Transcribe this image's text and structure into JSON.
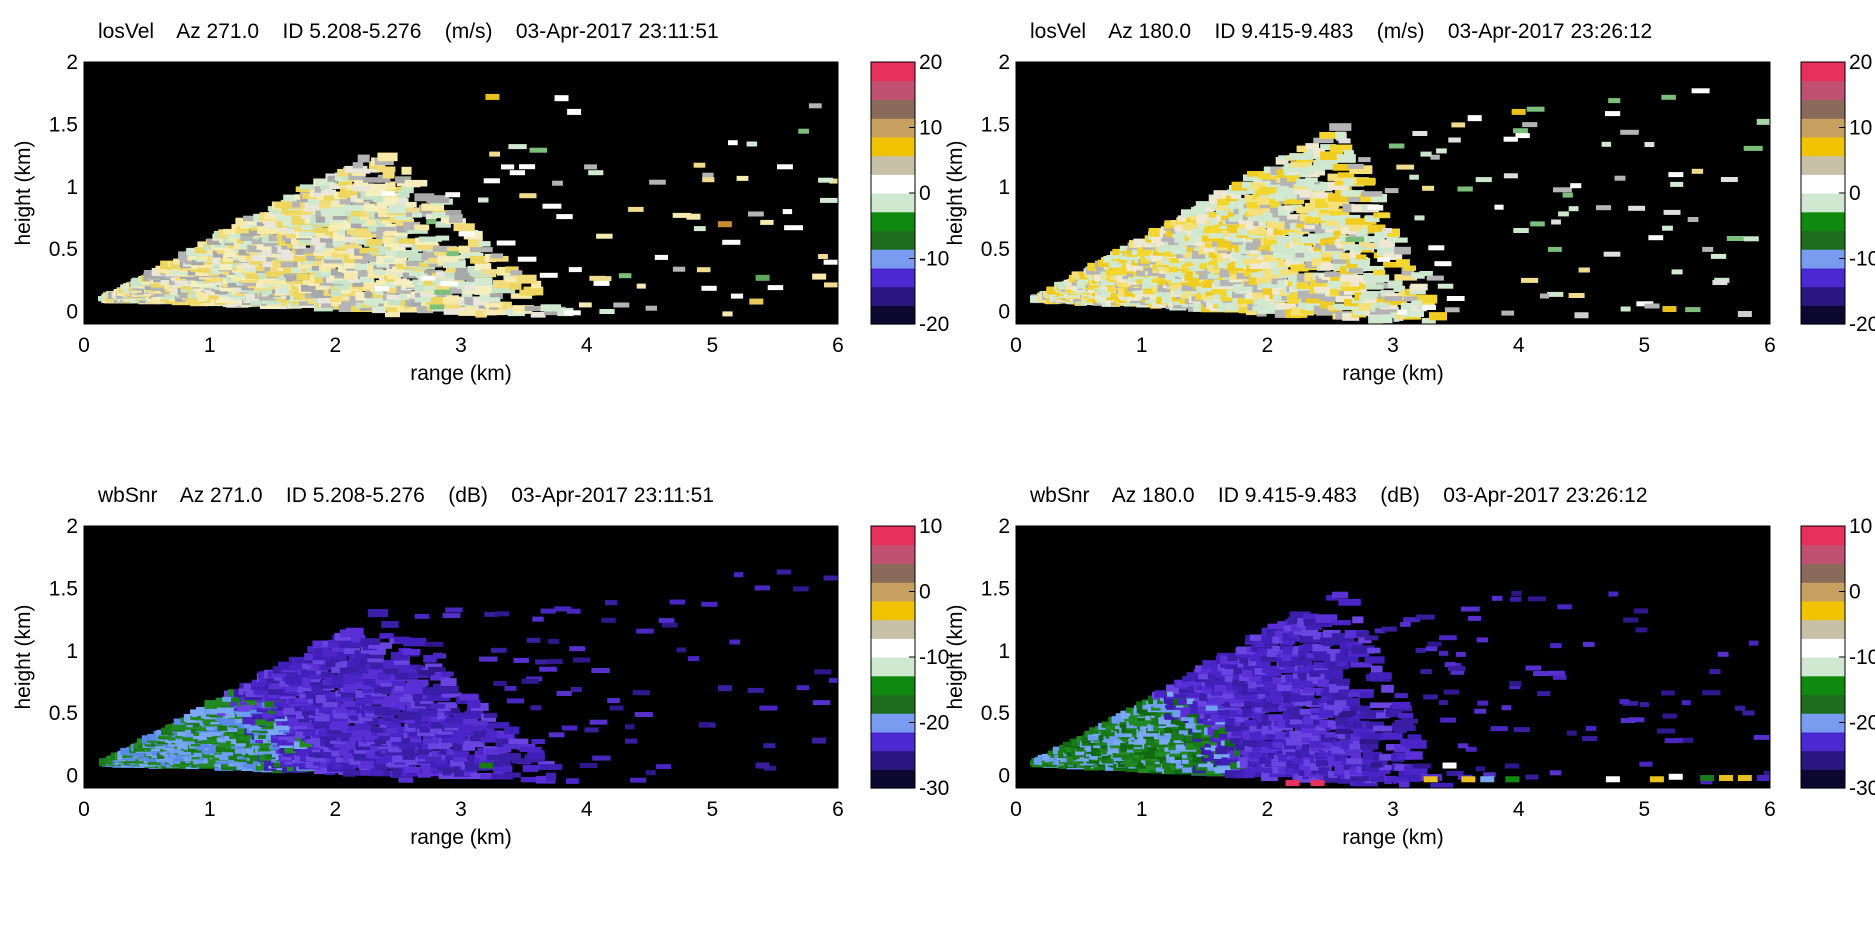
{
  "figure": {
    "colorbar_bands": [
      "#0b0730",
      "#2a1680",
      "#4a2ad0",
      "#7a9cf0",
      "#1d6d1d",
      "#0f8a0f",
      "#cfe8cf",
      "#ffffff",
      "#c9c0a8",
      "#f0c400",
      "#c8a060",
      "#8a6a5a",
      "#c05070",
      "#e8305c"
    ]
  },
  "chart_data": [
    {
      "type": "heatmap",
      "title": "losVel    Az 271.0    ID 5.208-5.276    (m/s)    03-Apr-2017 23:11:51",
      "xlabel": "range (km)",
      "ylabel": "height (km)",
      "xlim": [
        0,
        6
      ],
      "ylim": [
        -0.1,
        2
      ],
      "xticks": [
        "0",
        "1",
        "2",
        "3",
        "4",
        "5",
        "6"
      ],
      "yticks": [
        "0",
        "0.5",
        "1",
        "1.5",
        "2"
      ],
      "colorbar": {
        "min": -20,
        "max": 20,
        "ticks": [
          "20",
          "10",
          "0",
          "-10",
          "-20"
        ]
      },
      "background": "#000000",
      "cone": {
        "apex": [
          0.2,
          0.1
        ],
        "top_end": [
          2.35,
          1.32
        ],
        "bottom_end": [
          3.9,
          -0.05
        ]
      },
      "fill_colors": [
        "#d2ead2",
        "#c8e4c8",
        "#f5efc0",
        "#f7e9a6",
        "#ecd65e",
        "#f3dc78",
        "#e9e6dc",
        "#b4b4b4",
        "#a8a8a8"
      ],
      "scatter_colors": [
        "#ffffff",
        "#d2ead2",
        "#b4b4b4",
        "#f0dc8c",
        "#7bbf7b",
        "#ffffff",
        "#f6ebb0"
      ],
      "extra_cells": [
        [
          3.25,
          1.72,
          "#e8c020"
        ],
        [
          3.8,
          1.71,
          "#ffffff"
        ],
        [
          3.9,
          1.6,
          "#ffffff"
        ],
        [
          4.85,
          0.76,
          "#f7e9a6"
        ],
        [
          5.1,
          0.7,
          "#c88a30"
        ],
        [
          5.4,
          0.27,
          "#5ea85e"
        ],
        [
          5.35,
          0.08,
          "#e6c85a"
        ],
        [
          5.85,
          0.28,
          "#f7e9a6"
        ]
      ]
    },
    {
      "type": "heatmap",
      "title": "losVel    Az 180.0    ID 9.415-9.483    (m/s)    03-Apr-2017 23:26:12",
      "xlabel": "range (km)",
      "ylabel": "height (km)",
      "xlim": [
        0,
        6
      ],
      "ylim": [
        -0.1,
        2
      ],
      "xticks": [
        "0",
        "1",
        "2",
        "3",
        "4",
        "5",
        "6"
      ],
      "yticks": [
        "0",
        "0.5",
        "1",
        "1.5",
        "2"
      ],
      "colorbar": {
        "min": -20,
        "max": 20,
        "ticks": [
          "20",
          "10",
          "0",
          "-10",
          "-20"
        ]
      },
      "background": "#000000",
      "cone": {
        "apex": [
          0.2,
          0.1
        ],
        "top_end": [
          2.6,
          1.5
        ],
        "bottom_end": [
          3.4,
          -0.1
        ]
      },
      "fill_colors": [
        "#d2ead2",
        "#cfe6cf",
        "#f3d630",
        "#f0cc20",
        "#f6e07a",
        "#efe8d2",
        "#b4b4b4",
        "#d0e8d0"
      ],
      "scatter_colors": [
        "#ffffff",
        "#d2ead2",
        "#b4b4b4",
        "#f0dc8c",
        "#7bbf7b",
        "#cce6cc",
        "#e0e0e0"
      ],
      "extra_cells": [
        [
          4.0,
          1.6,
          "#e8c020"
        ],
        [
          3.65,
          1.55,
          "#ffffff"
        ],
        [
          5.95,
          1.52,
          "#a8d4a8"
        ],
        [
          5.2,
          0.02,
          "#e8c020"
        ],
        [
          5.8,
          -0.02,
          "#d0d0d0"
        ],
        [
          4.5,
          -0.03,
          "#d0d0d0"
        ]
      ]
    },
    {
      "type": "heatmap",
      "title": "wbSnr    Az 271.0    ID 5.208-5.276    (dB)    03-Apr-2017 23:11:51",
      "xlabel": "range (km)",
      "ylabel": "height (km)",
      "xlim": [
        0,
        6
      ],
      "ylim": [
        -0.1,
        2
      ],
      "xticks": [
        "0",
        "1",
        "2",
        "3",
        "4",
        "5",
        "6"
      ],
      "yticks": [
        "0",
        "0.5",
        "1",
        "1.5",
        "2"
      ],
      "colorbar": {
        "min": -30,
        "max": 10,
        "ticks": [
          "10",
          "0",
          "-10",
          "-20",
          "-30"
        ]
      },
      "background": "#000000",
      "cone": {
        "apex": [
          0.2,
          0.1
        ],
        "top_end": [
          2.35,
          1.32
        ],
        "bottom_end": [
          3.9,
          -0.05
        ]
      },
      "fill_colors": [
        "#4b25c8",
        "#5a2fd6",
        "#4020b8",
        "#6a44e0",
        "#3a1ea8"
      ],
      "near_colors": [
        "#1a7a1a",
        "#228a22",
        "#6e9ef0",
        "#7aa8f4",
        "#5a8ae8"
      ],
      "scatter_colors": [
        "#3a1ea0",
        "#4a26c0",
        "#5530cc",
        "#30188c"
      ],
      "extra_cells": [
        [
          5.1,
          0.7,
          "#3a1ea0"
        ],
        [
          5.4,
          0.08,
          "#3a1ea0"
        ],
        [
          5.85,
          0.28,
          "#3a1ea0"
        ],
        [
          3.2,
          0.08,
          "#1a7a1a"
        ]
      ]
    },
    {
      "type": "heatmap",
      "title": "wbSnr    Az 180.0    ID 9.415-9.483    (dB)    03-Apr-2017 23:26:12",
      "xlabel": "range (km)",
      "ylabel": "height (km)",
      "xlim": [
        0,
        6
      ],
      "ylim": [
        -0.1,
        2
      ],
      "xticks": [
        "0",
        "1",
        "2",
        "3",
        "4",
        "5",
        "6"
      ],
      "yticks": [
        "0",
        "0.5",
        "1",
        "1.5",
        "2"
      ],
      "colorbar": {
        "min": -30,
        "max": 10,
        "ticks": [
          "10",
          "0",
          "-10",
          "-20",
          "-30"
        ]
      },
      "background": "#000000",
      "cone": {
        "apex": [
          0.2,
          0.1
        ],
        "top_end": [
          2.6,
          1.5
        ],
        "bottom_end": [
          3.4,
          -0.1
        ]
      },
      "fill_colors": [
        "#4b25c8",
        "#5a2fd6",
        "#4020b8",
        "#6a44e0",
        "#3a1ea8"
      ],
      "near_colors": [
        "#1a7a1a",
        "#0f6a0f",
        "#228a22",
        "#6e9ef0",
        "#7aa8f4"
      ],
      "scatter_colors": [
        "#3a1ea0",
        "#4a26c0",
        "#5530cc",
        "#30188c"
      ],
      "extra_cells": [
        [
          2.4,
          -0.06,
          "#e8305c"
        ],
        [
          2.2,
          -0.06,
          "#e8305c"
        ],
        [
          3.3,
          -0.03,
          "#e8c020"
        ],
        [
          3.6,
          -0.03,
          "#e8c020"
        ],
        [
          3.75,
          -0.03,
          "#7aa8f4"
        ],
        [
          3.95,
          -0.03,
          "#0f8a0f"
        ],
        [
          4.75,
          -0.03,
          "#ffffff"
        ],
        [
          5.1,
          -0.03,
          "#e8c020"
        ],
        [
          5.25,
          -0.01,
          "#ffffff"
        ],
        [
          5.5,
          -0.02,
          "#1a7a1a"
        ],
        [
          5.65,
          -0.02,
          "#e8c020"
        ],
        [
          5.8,
          -0.02,
          "#e8c020"
        ],
        [
          5.95,
          -0.02,
          "#4a26c0"
        ],
        [
          3.45,
          0.08,
          "#ffffff"
        ]
      ]
    }
  ]
}
